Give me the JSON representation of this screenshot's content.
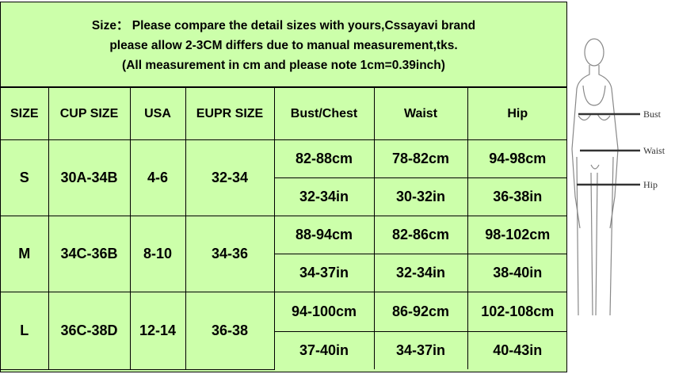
{
  "notes": [
    "Size： Please compare the detail sizes with yours,Cssayavi brand",
    "please allow 2-3CM differs due to manual measurement,tks.",
    "(All measurement in cm and please note 1cm=0.39inch)"
  ],
  "headers": [
    "SIZE",
    "CUP SIZE",
    "USA",
    "EUPR SIZE",
    "Bust/Chest",
    "Waist",
    "Hip"
  ],
  "rows": [
    {
      "size": "S",
      "cup": "30A-34B",
      "usa": "4-6",
      "eupr": "32-34",
      "cm": [
        "82-88cm",
        "78-82cm",
        "94-98cm"
      ],
      "in": [
        "32-34in",
        "30-32in",
        "36-38in"
      ]
    },
    {
      "size": "M",
      "cup": "34C-36B",
      "usa": "8-10",
      "eupr": "34-36",
      "cm": [
        "88-94cm",
        "82-86cm",
        "98-102cm"
      ],
      "in": [
        "34-37in",
        "32-34in",
        "38-40in"
      ]
    },
    {
      "size": "L",
      "cup": "36C-38D",
      "usa": "12-14",
      "eupr": "36-38",
      "cm": [
        "94-100cm",
        "86-92cm",
        "102-108cm"
      ],
      "in": [
        "37-40in",
        "34-37in",
        "40-43in"
      ]
    }
  ],
  "figure": {
    "labels": [
      "Bust",
      "Waist",
      "Hip"
    ]
  },
  "colors": {
    "background": "#ccffaa",
    "border": "#000000"
  }
}
